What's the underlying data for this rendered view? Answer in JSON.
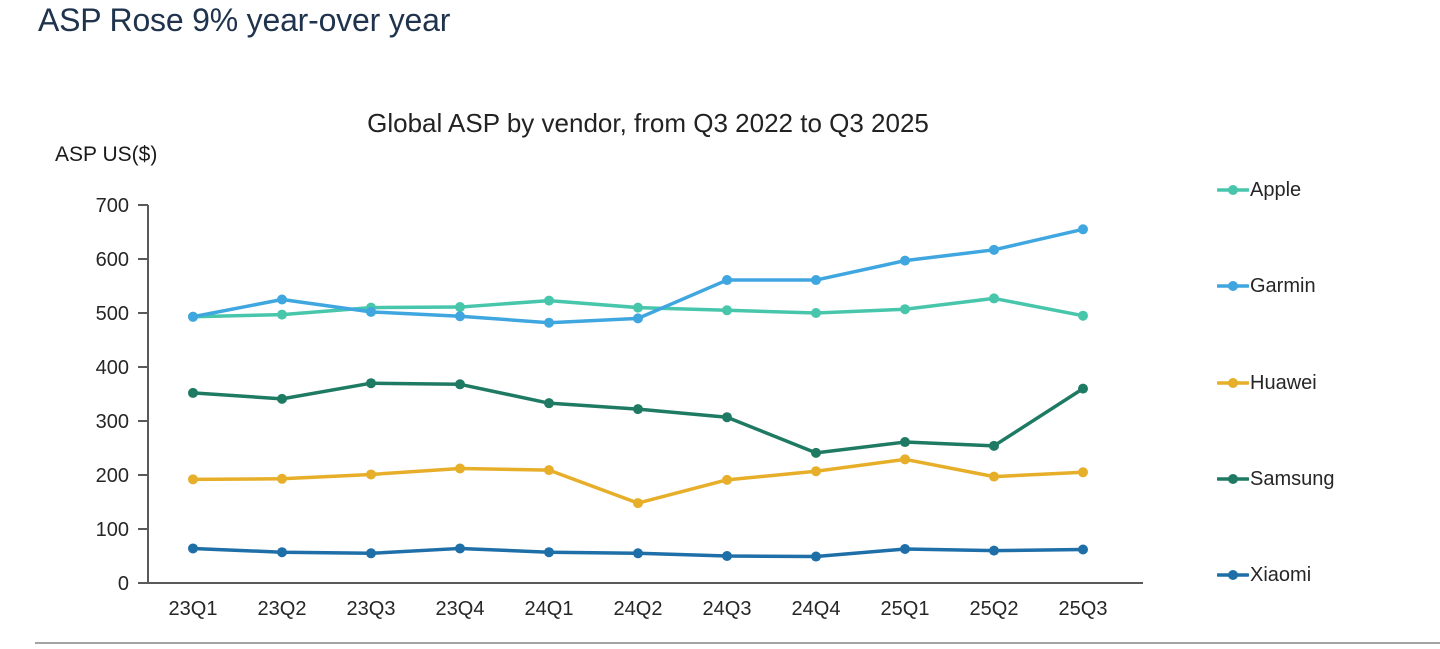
{
  "page": {
    "title": "ASP Rose 9% year-over year",
    "title_color": "#1f334d"
  },
  "chart_data": {
    "type": "line",
    "title": "Global ASP by vendor, from Q3 2022 to Q3 2025",
    "y_axis_label": "ASP US($)",
    "xlabel": "",
    "ylabel": "ASP US($)",
    "categories": [
      "23Q1",
      "23Q2",
      "23Q3",
      "23Q4",
      "24Q1",
      "24Q2",
      "24Q3",
      "24Q4",
      "25Q1",
      "25Q2",
      "25Q3"
    ],
    "y_ticks": [
      0,
      100,
      200,
      300,
      400,
      500,
      600,
      700
    ],
    "ylim": [
      0,
      700
    ],
    "grid": false,
    "legend_position": "right",
    "axis_color": "#5a5a5a",
    "series": [
      {
        "name": "Apple",
        "color": "#48C6AC",
        "values": [
          493,
          497,
          510,
          511,
          523,
          510,
          505,
          500,
          507,
          527,
          495
        ]
      },
      {
        "name": "Garmin",
        "color": "#3FA6DF",
        "values": [
          493,
          525,
          502,
          494,
          482,
          490,
          561,
          561,
          597,
          617,
          655
        ]
      },
      {
        "name": "Huawei",
        "color": "#E7AE29",
        "values": [
          192,
          193,
          201,
          212,
          209,
          148,
          191,
          207,
          229,
          197,
          205
        ]
      },
      {
        "name": "Samsung",
        "color": "#1F7A64",
        "values": [
          352,
          341,
          370,
          368,
          333,
          322,
          307,
          241,
          261,
          254,
          360
        ]
      },
      {
        "name": "Xiaomi",
        "color": "#1E6FA8",
        "values": [
          64,
          57,
          55,
          64,
          57,
          55,
          50,
          49,
          63,
          60,
          62
        ]
      }
    ]
  }
}
